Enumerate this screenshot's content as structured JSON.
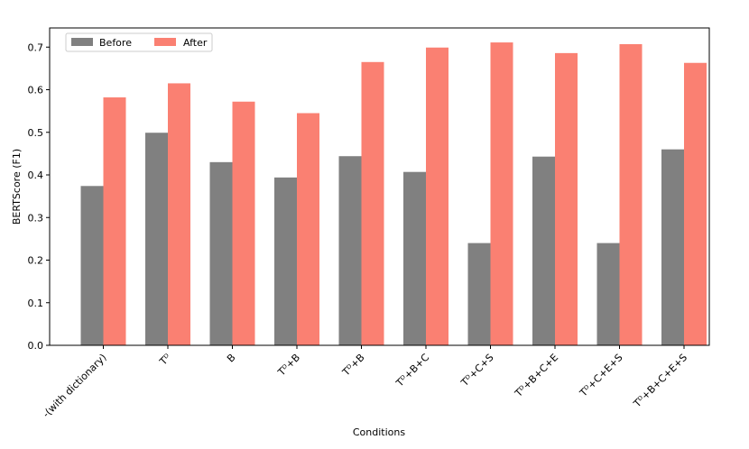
{
  "chart_data": {
    "type": "bar",
    "title": "",
    "xlabel": "Conditions",
    "ylabel": "BERTScore (F1)",
    "ylim": [
      0,
      0.745
    ],
    "yticks": [
      "0.0",
      "0.1",
      "0.2",
      "0.3",
      "0.4",
      "0.5",
      "0.6",
      "0.7"
    ],
    "categories": [
      "-(with dictionary)",
      "Tᴰ",
      "B",
      "Tᴰ+B",
      "Tᴰ+B",
      "Tᴰ+B+C",
      "Tᴰ+C+S",
      "Tᴰ+B+C+E",
      "Tᴰ+C+E+S",
      "Tᴰ+B+C+E+S"
    ],
    "series": [
      {
        "name": "Before",
        "color": "#808080",
        "values": [
          0.374,
          0.499,
          0.43,
          0.394,
          0.444,
          0.407,
          0.24,
          0.443,
          0.24,
          0.46
        ]
      },
      {
        "name": "After",
        "color": "#fa8072",
        "values": [
          0.582,
          0.615,
          0.572,
          0.545,
          0.665,
          0.699,
          0.711,
          0.686,
          0.707,
          0.663
        ]
      }
    ],
    "legend_position": "top-left",
    "grid": false
  }
}
